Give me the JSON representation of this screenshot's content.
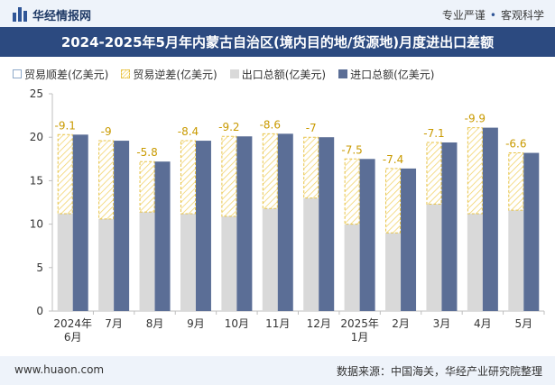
{
  "header": {
    "brand": "华经情报网",
    "tag_left": "专业严谨",
    "tag_sep": "•",
    "tag_right": "客观科学"
  },
  "footer": {
    "website": "www.huaon.com",
    "source": "数据来源：中国海关，华经产业研究院整理"
  },
  "colors": {
    "export": "#d9d9d9",
    "import": "#5b6e96",
    "deficit": "#f7e08a",
    "title_bar": "#2c4a80"
  },
  "chart_data": {
    "type": "bar",
    "title": "2024-2025年5月年内蒙古自治区(境内目的地/货源地)月度进出口差额",
    "legend": [
      "贸易顺差(亿美元)",
      "贸易逆差(亿美元)",
      "出口总额(亿美元)",
      "进口总额(亿美元)"
    ],
    "categories": [
      "2024年\n6月",
      "7月",
      "8月",
      "9月",
      "10月",
      "11月",
      "12月",
      "2025年\n1月",
      "2月",
      "3月",
      "4月",
      "5月"
    ],
    "series": [
      {
        "name": "出口总额(亿美元)",
        "values": [
          11.2,
          10.6,
          11.4,
          11.2,
          10.9,
          11.8,
          13.0,
          10.0,
          9.0,
          12.3,
          11.2,
          11.6
        ]
      },
      {
        "name": "进口总额(亿美元)",
        "values": [
          20.3,
          19.6,
          17.2,
          19.6,
          20.1,
          20.4,
          20.0,
          17.5,
          16.4,
          19.4,
          21.1,
          18.2
        ]
      },
      {
        "name": "贸易逆差(亿美元)",
        "values": [
          -9.1,
          -9,
          -5.8,
          -8.4,
          -9.2,
          -8.6,
          -7,
          -7.5,
          -7.4,
          -7.1,
          -9.9,
          -6.6
        ]
      },
      {
        "name": "贸易顺差(亿美元)",
        "values": [
          null,
          null,
          null,
          null,
          null,
          null,
          null,
          null,
          null,
          null,
          null,
          null
        ]
      }
    ],
    "data_labels": [
      "-9.1",
      "-9",
      "-5.8",
      "-8.4",
      "-9.2",
      "-8.6",
      "-7",
      "-7.5",
      "-7.4",
      "-7.1",
      "-9.9",
      "-6.6"
    ],
    "ylim": [
      0,
      25
    ],
    "yticks": [
      0,
      5,
      10,
      15,
      20,
      25
    ],
    "grid": false,
    "legend_position": "top-left"
  }
}
